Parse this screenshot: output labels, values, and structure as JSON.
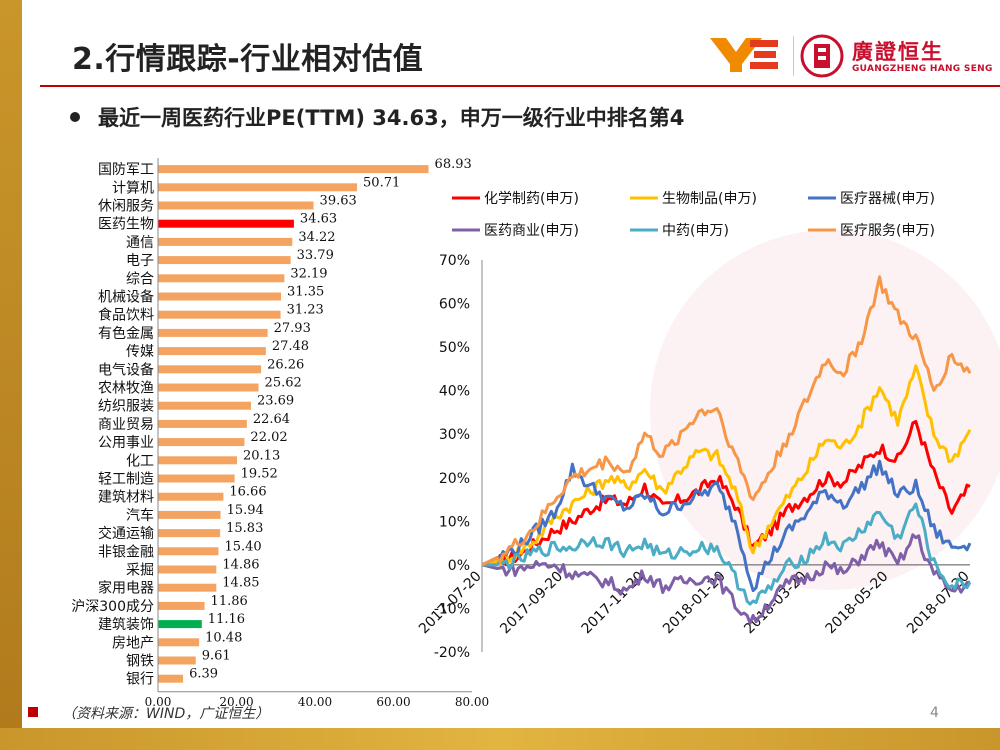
{
  "slide": {
    "title": "2.行情跟踪-行业相对估值",
    "subtitle": "最近一周医药行业PE(TTM) 34.63，申万一级行业中排名第4",
    "source": "（资料来源：WIND，广证恒生）",
    "page_number": "4"
  },
  "logo": {
    "name_cn": "廣證恒生",
    "name_en": "GUANGZHENG HANG SENG"
  },
  "colors": {
    "accent": "#c00000",
    "bar": "#f4a460",
    "bar_highlight_red": "#ff0000",
    "bar_highlight_green": "#00b050"
  },
  "chart_data": [
    {
      "type": "bar",
      "orientation": "horizontal",
      "categories": [
        "国防军工",
        "计算机",
        "休闲服务",
        "医药生物",
        "通信",
        "电子",
        "综合",
        "机械设备",
        "食品饮料",
        "有色金属",
        "传媒",
        "电气设备",
        "农林牧渔",
        "纺织服装",
        "商业贸易",
        "公用事业",
        "化工",
        "轻工制造",
        "建筑材料",
        "汽车",
        "交通运输",
        "非银金融",
        "采掘",
        "家用电器",
        "沪深300成分",
        "建筑装饰",
        "房地产",
        "钢铁",
        "银行"
      ],
      "values": [
        68.93,
        50.71,
        39.63,
        34.63,
        34.22,
        33.79,
        32.19,
        31.35,
        31.23,
        27.93,
        27.48,
        26.26,
        25.62,
        23.69,
        22.64,
        22.02,
        20.13,
        19.52,
        16.66,
        15.94,
        15.83,
        15.4,
        14.86,
        14.85,
        11.86,
        11.16,
        10.48,
        9.61,
        6.39
      ],
      "value_labels": [
        "68.93",
        "50.71",
        "39.63",
        "34.63",
        "34.22",
        "33.79",
        "32.19",
        "31.35",
        "31.23",
        "27.93",
        "27.48",
        "26.26",
        "25.62",
        "23.69",
        "22.64",
        "22.02",
        "20.13",
        "19.52",
        "16.66",
        "15.94",
        "15.83",
        "15.40",
        "14.86",
        "14.85",
        "11.86",
        "11.16",
        "10.48",
        "9.61",
        "6.39"
      ],
      "highlight": {
        "医药生物": "red",
        "建筑装饰": "green"
      },
      "xlim": [
        0,
        80
      ],
      "xticks": [
        "0.00",
        "20.00",
        "40.00",
        "60.00",
        "80.00"
      ]
    },
    {
      "type": "line",
      "x_ticks": [
        "2017-07-20",
        "2017-09-20",
        "2017-11-20",
        "2018-01-20",
        "2018-03-20",
        "2018-05-20",
        "2018-07-20"
      ],
      "y_ticks": [
        "70%",
        "60%",
        "50%",
        "40%",
        "30%",
        "20%",
        "10%",
        "0%",
        "-10%",
        "-20%"
      ],
      "ylim": [
        -0.2,
        0.7
      ],
      "legend_position": "top",
      "series": [
        {
          "name": "化学制药(申万)",
          "color": "#ff0000",
          "values": [
            0.0,
            0.01,
            0.02,
            0.05,
            0.08,
            0.1,
            0.13,
            0.15,
            0.14,
            0.18,
            0.13,
            0.15,
            0.17,
            0.2,
            0.14,
            0.04,
            0.08,
            0.13,
            0.16,
            0.2,
            0.19,
            0.23,
            0.27,
            0.24,
            0.33,
            0.21,
            0.12,
            0.18
          ]
        },
        {
          "name": "生物制品(申万)",
          "color": "#ffc000",
          "values": [
            0.0,
            0.01,
            0.03,
            0.06,
            0.11,
            0.14,
            0.17,
            0.2,
            0.18,
            0.22,
            0.17,
            0.22,
            0.26,
            0.25,
            0.17,
            0.03,
            0.1,
            0.16,
            0.22,
            0.29,
            0.27,
            0.33,
            0.41,
            0.33,
            0.45,
            0.3,
            0.24,
            0.31
          ]
        },
        {
          "name": "医疗器械(申万)",
          "color": "#4472c4",
          "values": [
            0.0,
            0.02,
            0.04,
            0.08,
            0.12,
            0.22,
            0.18,
            0.15,
            0.13,
            0.16,
            0.12,
            0.14,
            0.16,
            0.18,
            0.1,
            -0.05,
            0.02,
            0.08,
            0.12,
            0.17,
            0.14,
            0.18,
            0.23,
            0.16,
            0.18,
            0.08,
            0.04,
            0.05
          ]
        },
        {
          "name": "医药商业(申万)",
          "color": "#7f5fa8",
          "values": [
            0.0,
            -0.01,
            -0.01,
            0.0,
            0.0,
            -0.02,
            -0.03,
            -0.04,
            -0.06,
            -0.02,
            -0.05,
            -0.04,
            -0.03,
            -0.03,
            -0.09,
            -0.13,
            -0.08,
            -0.04,
            -0.03,
            0.0,
            -0.02,
            0.02,
            0.05,
            0.0,
            0.07,
            -0.02,
            -0.06,
            -0.04
          ]
        },
        {
          "name": "中药(申万)",
          "color": "#4bacc6",
          "values": [
            0.0,
            0.0,
            0.01,
            0.03,
            0.04,
            0.04,
            0.06,
            0.05,
            0.03,
            0.05,
            0.02,
            0.03,
            0.04,
            0.04,
            -0.03,
            -0.09,
            -0.05,
            0.0,
            0.02,
            0.06,
            0.04,
            0.08,
            0.12,
            0.06,
            0.14,
            0.0,
            -0.05,
            -0.04
          ]
        },
        {
          "name": "医疗服务(申万)",
          "color": "#f79646",
          "values": [
            0.0,
            0.02,
            0.05,
            0.09,
            0.15,
            0.2,
            0.22,
            0.24,
            0.21,
            0.3,
            0.25,
            0.3,
            0.35,
            0.36,
            0.25,
            0.15,
            0.22,
            0.3,
            0.38,
            0.47,
            0.44,
            0.52,
            0.65,
            0.57,
            0.52,
            0.4,
            0.48,
            0.44
          ]
        }
      ]
    }
  ]
}
